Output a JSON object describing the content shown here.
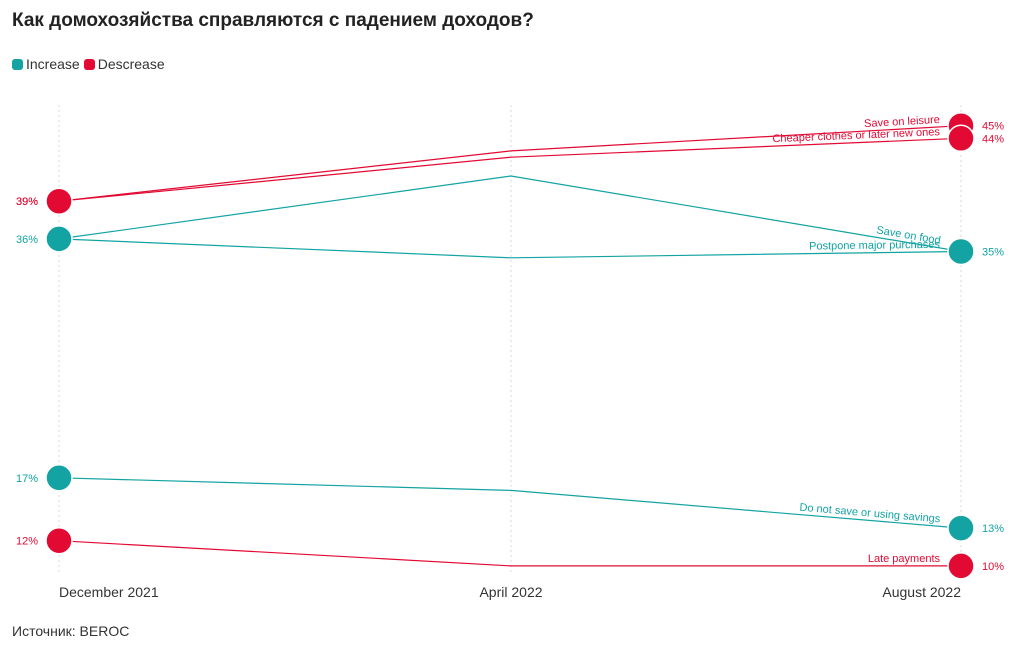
{
  "title": "Как домохозяйства справляются с падением доходов?",
  "legend": [
    {
      "label": "Increase",
      "color": "#13a3a3"
    },
    {
      "label": "Descrease",
      "color": "#e20a33"
    }
  ],
  "source": "Источник: BEROC",
  "chart_data": {
    "type": "line",
    "x": [
      "December 2021",
      "April 2022",
      "August 2022"
    ],
    "ylim": [
      8,
      48
    ],
    "grid": "vertical",
    "legend_position": "top-left",
    "series": [
      {
        "name": "Save on leisure",
        "group": "Descrease",
        "color": "#e20a33",
        "values": [
          39,
          43,
          45
        ],
        "start_label": "39%",
        "end_label": "45%"
      },
      {
        "name": "Cheaper clothes or later new ones",
        "group": "Descrease",
        "color": "#e20a33",
        "values": [
          39,
          42.5,
          44
        ],
        "start_label": "39%",
        "end_label": "44%"
      },
      {
        "name": "Save on food",
        "group": "Increase",
        "color": "#13a3a3",
        "values": [
          36,
          41,
          35
        ],
        "start_label": "36%",
        "end_label": "35%"
      },
      {
        "name": "Postpone major purchases",
        "group": "Increase",
        "color": "#13a3a3",
        "values": [
          36,
          34.5,
          35
        ],
        "start_label": "",
        "end_label": ""
      },
      {
        "name": "Do not save or using savings",
        "group": "Increase",
        "color": "#13a3a3",
        "values": [
          17,
          16,
          13
        ],
        "start_label": "17%",
        "end_label": "13%"
      },
      {
        "name": "Late payments",
        "group": "Descrease",
        "color": "#e20a33",
        "values": [
          12,
          10,
          10
        ],
        "start_label": "12%",
        "end_label": "10%"
      }
    ]
  }
}
